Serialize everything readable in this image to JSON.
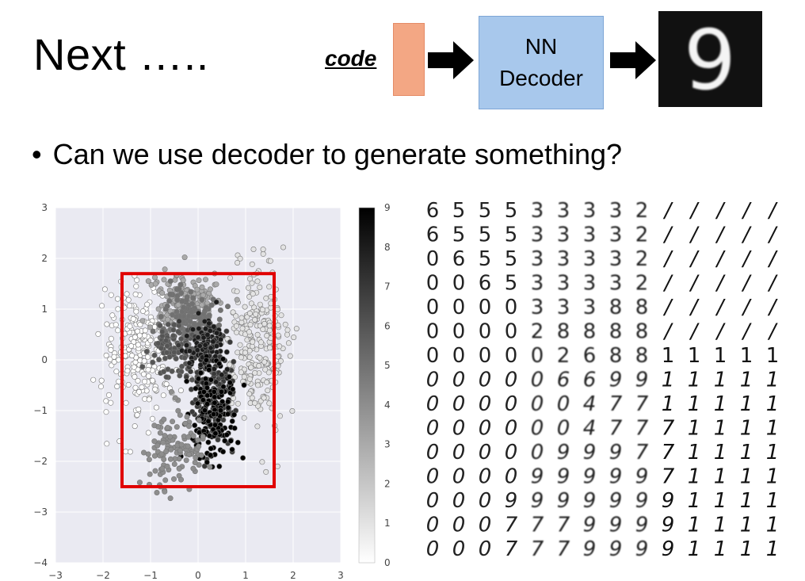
{
  "header": {
    "title": "Next …..",
    "code_label": "code",
    "decoder_line1": "NN",
    "decoder_line2": "Decoder",
    "output_digit": "9"
  },
  "bullet": {
    "text": "Can we use decoder to generate something?"
  },
  "colors": {
    "code_block": "#f3a784",
    "decoder_box": "#a8c8ec",
    "highlight_rect": "#e00000",
    "plot_bg": "#eaeaf2"
  },
  "chart_data": [
    {
      "type": "scatter",
      "title": "",
      "xlabel": "",
      "ylabel": "",
      "xlim": [
        -3,
        3
      ],
      "ylim": [
        -4,
        3
      ],
      "xticks": [
        "−3",
        "−2",
        "−1",
        "0",
        "1",
        "2",
        "3"
      ],
      "yticks": [
        "3",
        "2",
        "1",
        "0",
        "−1",
        "−2",
        "−3",
        "−4"
      ],
      "grid": true,
      "color_scale": "gray_r",
      "colorbar": {
        "min": 0,
        "max": 9,
        "ticks": [
          "9",
          "8",
          "7",
          "6",
          "5",
          "4",
          "3",
          "2",
          "1",
          "0"
        ]
      },
      "highlight_rect": {
        "x0": -1.6,
        "x1": 1.6,
        "y0": -2.5,
        "y1": 1.7
      },
      "clusters": [
        {
          "label": 0,
          "cx": -1.2,
          "cy": 0.2,
          "sx": 0.38,
          "sy": 0.65,
          "n": 260
        },
        {
          "label": 1,
          "cx": 1.2,
          "cy": 0.3,
          "sx": 0.32,
          "sy": 0.75,
          "n": 260
        },
        {
          "label": 3,
          "cx": -0.3,
          "cy": 1.2,
          "sx": 0.35,
          "sy": 0.28,
          "n": 160
        },
        {
          "label": 5,
          "cx": -0.2,
          "cy": 0.8,
          "sx": 0.28,
          "sy": 0.3,
          "n": 120
        },
        {
          "label": 6,
          "cx": -0.5,
          "cy": 0.2,
          "sx": 0.25,
          "sy": 0.3,
          "n": 90
        },
        {
          "label": 7,
          "cx": 0.3,
          "cy": -0.5,
          "sx": 0.25,
          "sy": 0.55,
          "n": 160
        },
        {
          "label": 8,
          "cx": 0.2,
          "cy": 0.2,
          "sx": 0.2,
          "sy": 0.3,
          "n": 110
        },
        {
          "label": 9,
          "cx": 0.3,
          "cy": -1.0,
          "sx": 0.25,
          "sy": 0.45,
          "n": 180
        },
        {
          "label": 4,
          "cx": -0.5,
          "cy": -1.8,
          "sx": 0.35,
          "sy": 0.35,
          "n": 120
        }
      ]
    },
    {
      "type": "table",
      "title": "",
      "rows": [
        [
          "6",
          "5",
          "5",
          "5",
          "3",
          "3",
          "3",
          "3",
          "2",
          "/",
          "/",
          "/",
          "/",
          "/"
        ],
        [
          "6",
          "5",
          "5",
          "5",
          "3",
          "3",
          "3",
          "3",
          "2",
          "/",
          "/",
          "/",
          "/",
          "/"
        ],
        [
          "0",
          "6",
          "5",
          "5",
          "3",
          "3",
          "3",
          "3",
          "2",
          "/",
          "/",
          "/",
          "/",
          "/"
        ],
        [
          "0",
          "0",
          "6",
          "5",
          "3",
          "3",
          "3",
          "3",
          "2",
          "/",
          "/",
          "/",
          "/",
          "/"
        ],
        [
          "0",
          "0",
          "0",
          "0",
          "3",
          "3",
          "3",
          "8",
          "8",
          "/",
          "/",
          "/",
          "/",
          "/"
        ],
        [
          "0",
          "0",
          "0",
          "0",
          "2",
          "8",
          "8",
          "8",
          "8",
          "/",
          "/",
          "/",
          "/",
          "/"
        ],
        [
          "0",
          "0",
          "0",
          "0",
          "0",
          "2",
          "6",
          "8",
          "8",
          "1",
          "1",
          "1",
          "1",
          "1"
        ],
        [
          "0",
          "0",
          "0",
          "0",
          "0",
          "6",
          "6",
          "9",
          "9",
          "1",
          "1",
          "1",
          "1",
          "1"
        ],
        [
          "0",
          "0",
          "0",
          "0",
          "0",
          "0",
          "4",
          "7",
          "7",
          "1",
          "1",
          "1",
          "1",
          "1"
        ],
        [
          "0",
          "0",
          "0",
          "0",
          "0",
          "0",
          "4",
          "7",
          "7",
          "7",
          "1",
          "1",
          "1",
          "1"
        ],
        [
          "0",
          "0",
          "0",
          "0",
          "0",
          "9",
          "9",
          "9",
          "7",
          "7",
          "1",
          "1",
          "1",
          "1"
        ],
        [
          "0",
          "0",
          "0",
          "0",
          "9",
          "9",
          "9",
          "9",
          "9",
          "7",
          "1",
          "1",
          "1",
          "1"
        ],
        [
          "0",
          "0",
          "0",
          "9",
          "9",
          "9",
          "9",
          "9",
          "9",
          "9",
          "1",
          "1",
          "1",
          "1"
        ],
        [
          "0",
          "0",
          "0",
          "7",
          "7",
          "7",
          "9",
          "9",
          "9",
          "9",
          "1",
          "1",
          "1",
          "1"
        ],
        [
          "0",
          "0",
          "0",
          "7",
          "7",
          "7",
          "9",
          "9",
          "9",
          "9",
          "1",
          "1",
          "1",
          "1"
        ]
      ]
    }
  ]
}
